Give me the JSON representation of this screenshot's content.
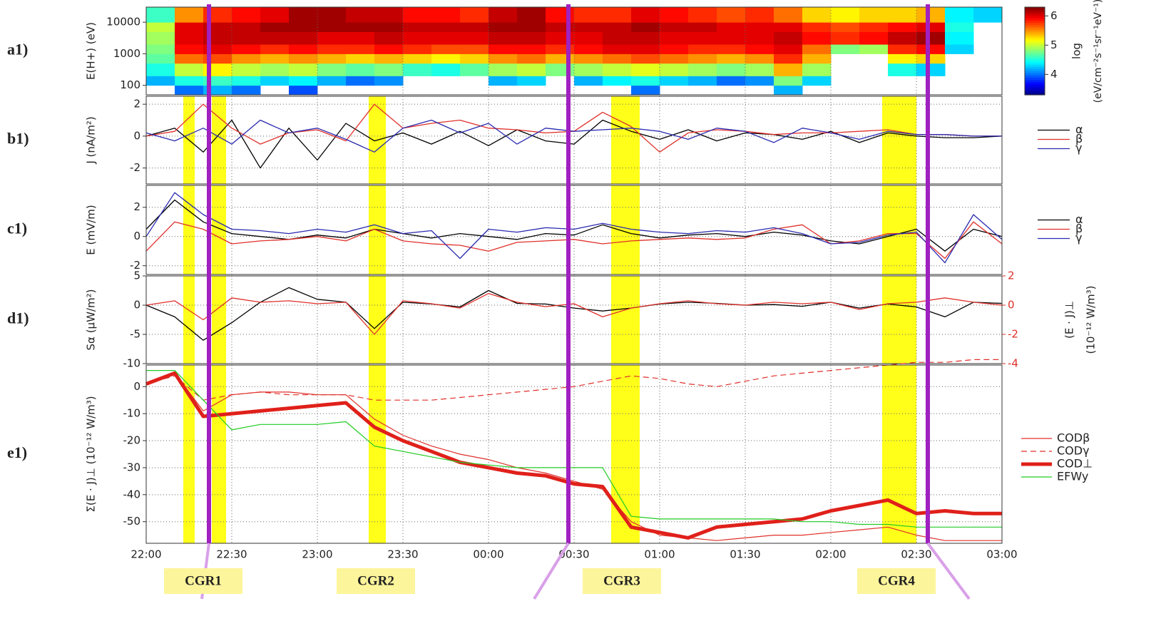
{
  "x_axis": {
    "xlim": [
      0,
      300
    ],
    "xticks": [
      {
        "value": 0,
        "label": "22:00"
      },
      {
        "value": 30,
        "label": "22:30"
      },
      {
        "value": 60,
        "label": "23:00"
      },
      {
        "value": 90,
        "label": "23:30"
      },
      {
        "value": 120,
        "label": "00:00"
      },
      {
        "value": 150,
        "label": "00:30"
      },
      {
        "value": 180,
        "label": "01:00"
      },
      {
        "value": 210,
        "label": "01:30"
      },
      {
        "value": 240,
        "label": "02:00"
      },
      {
        "value": 270,
        "label": "02:30"
      },
      {
        "value": 300,
        "label": "03:00"
      }
    ]
  },
  "highlights": [
    [
      13,
      17
    ],
    [
      23,
      28
    ],
    [
      78,
      84
    ],
    [
      163,
      173
    ],
    [
      258,
      270
    ]
  ],
  "markers": [
    22,
    148,
    274
  ],
  "regions": [
    "CGR1",
    "CGR2",
    "CGR3",
    "CGR4"
  ],
  "chart_data": [
    {
      "type": "heatmap",
      "panel": "a1)",
      "ylabel": "E(H+) (eV)",
      "log_y": true,
      "ylim": [
        50,
        30000
      ],
      "yticks": [
        100,
        1000,
        10000
      ],
      "x_edges": [
        0,
        10,
        20,
        30,
        40,
        50,
        60,
        70,
        80,
        90,
        100,
        110,
        120,
        130,
        140,
        150,
        160,
        170,
        180,
        190,
        200,
        210,
        220,
        230,
        240,
        250,
        260,
        270,
        280,
        290,
        300
      ],
      "y_edges": [
        50,
        100,
        200,
        500,
        1000,
        2000,
        5000,
        10000,
        30000
      ],
      "z": [
        [
          null,
          4.0,
          4.2,
          4.0,
          null,
          3.9,
          null,
          null,
          null,
          null,
          null,
          null,
          null,
          null,
          null,
          null,
          null,
          4.0,
          null,
          null,
          null,
          null,
          4.2,
          null,
          null,
          null,
          null,
          null,
          null,
          null
        ],
        [
          4.2,
          4.5,
          4.6,
          4.5,
          4.3,
          4.4,
          4.2,
          4.0,
          4.1,
          null,
          null,
          null,
          4.2,
          4.3,
          null,
          4.2,
          4.4,
          4.5,
          4.3,
          4.2,
          4.0,
          4.1,
          4.8,
          4.3,
          null,
          null,
          null,
          null,
          null,
          null
        ],
        [
          4.5,
          5.0,
          5.2,
          5.0,
          4.9,
          5.0,
          4.8,
          4.7,
          4.8,
          4.6,
          4.5,
          4.7,
          4.9,
          5.0,
          4.8,
          4.9,
          5.0,
          5.1,
          5.0,
          4.9,
          4.8,
          4.9,
          5.4,
          4.9,
          null,
          null,
          4.5,
          4.3,
          null,
          null
        ],
        [
          4.7,
          5.6,
          5.7,
          5.5,
          5.4,
          5.5,
          5.4,
          5.3,
          5.4,
          5.3,
          5.2,
          5.3,
          5.5,
          5.6,
          5.4,
          5.5,
          5.6,
          5.7,
          5.6,
          5.5,
          5.4,
          5.5,
          5.8,
          5.4,
          null,
          null,
          5.2,
          5.3,
          null,
          null
        ],
        [
          4.8,
          5.9,
          6.0,
          5.9,
          5.8,
          5.9,
          5.8,
          5.8,
          5.9,
          5.8,
          5.7,
          5.7,
          5.9,
          5.9,
          5.8,
          5.9,
          6.0,
          6.0,
          5.9,
          5.8,
          5.8,
          5.9,
          6.0,
          5.6,
          4.8,
          4.9,
          5.8,
          5.9,
          4.3,
          null
        ],
        [
          4.9,
          6.0,
          6.1,
          6.1,
          6.1,
          6.1,
          6.0,
          6.0,
          6.1,
          6.0,
          6.0,
          6.0,
          6.1,
          6.1,
          6.0,
          6.0,
          6.1,
          6.1,
          6.0,
          6.0,
          6.0,
          6.0,
          6.1,
          5.9,
          5.8,
          5.9,
          6.1,
          6.2,
          4.4,
          null
        ],
        [
          5.0,
          6.0,
          6.1,
          6.1,
          6.2,
          6.2,
          6.2,
          6.2,
          6.2,
          6.1,
          6.1,
          6.1,
          6.2,
          6.2,
          6.1,
          6.1,
          6.1,
          6.2,
          6.1,
          6.1,
          6.0,
          6.0,
          6.0,
          5.8,
          5.7,
          5.8,
          5.9,
          6.0,
          4.5,
          null
        ],
        [
          4.6,
          5.5,
          5.8,
          5.9,
          6.0,
          6.2,
          6.2,
          6.1,
          6.1,
          5.9,
          5.9,
          5.8,
          6.1,
          6.2,
          5.9,
          5.8,
          5.8,
          6.0,
          5.9,
          5.8,
          5.7,
          5.8,
          5.6,
          5.3,
          5.2,
          5.3,
          5.3,
          5.4,
          4.4,
          4.3
        ]
      ],
      "colorbar": {
        "lim": [
          3.3,
          6.3
        ],
        "ticks": [
          4,
          5,
          6
        ],
        "label": "log",
        "unit": "(eV/cm⁻²s⁻¹sr⁻¹eV⁻¹)"
      }
    },
    {
      "type": "line",
      "panel": "b1)",
      "ylabel": "J (nA/m²)",
      "ylim": [
        -3,
        2.5
      ],
      "yticks": [
        -2,
        0,
        2
      ],
      "x": [
        0,
        10,
        20,
        30,
        40,
        50,
        60,
        70,
        80,
        90,
        100,
        110,
        120,
        130,
        140,
        150,
        160,
        170,
        180,
        190,
        200,
        210,
        220,
        230,
        240,
        250,
        260,
        270,
        280,
        290,
        300
      ],
      "series": [
        {
          "name": "α",
          "color": "#000000",
          "values": [
            0,
            0.5,
            -1,
            1,
            -2,
            0.5,
            -1.5,
            0.8,
            -0.3,
            0.2,
            -0.5,
            0.3,
            -0.6,
            0.4,
            -0.3,
            -0.5,
            1.0,
            0.3,
            -0.2,
            0.4,
            -0.3,
            0.2,
            0.1,
            -0.2,
            0.3,
            -0.4,
            0.2,
            0.0,
            -0.1,
            -0.1,
            0
          ]
        },
        {
          "name": "β",
          "color": "#e0302a",
          "values": [
            0,
            0.3,
            2,
            0.5,
            -0.5,
            0.2,
            0.4,
            -0.3,
            2,
            0.5,
            0.8,
            1,
            0.5,
            0.4,
            0.2,
            0.3,
            1.5,
            0.6,
            -1,
            0.2,
            0.4,
            0.3,
            0.1,
            0.2,
            0.2,
            0.3,
            0.4,
            0.1,
            0.1,
            0,
            0
          ]
        },
        {
          "name": "γ",
          "color": "#2a2ab0",
          "values": [
            0.2,
            -0.3,
            0.5,
            -0.5,
            1,
            0.2,
            0.5,
            -0.2,
            -1,
            0.5,
            1,
            0.2,
            0.8,
            -0.5,
            0.5,
            0.3,
            0.4,
            0.5,
            0.3,
            -0.2,
            0.5,
            0.3,
            -0.4,
            0.5,
            0.2,
            -0.2,
            0.3,
            0.1,
            0.1,
            0,
            0
          ]
        }
      ]
    },
    {
      "type": "line",
      "panel": "c1)",
      "ylabel": "E (mV/m)",
      "ylim": [
        -2.6,
        3.5
      ],
      "yticks": [
        -2,
        0,
        2
      ],
      "x": [
        0,
        10,
        20,
        30,
        40,
        50,
        60,
        70,
        80,
        90,
        100,
        110,
        120,
        130,
        140,
        150,
        160,
        170,
        180,
        190,
        200,
        210,
        220,
        230,
        240,
        250,
        260,
        270,
        280,
        290,
        300
      ],
      "series": [
        {
          "name": "α",
          "color": "#000000",
          "values": [
            0.5,
            2.5,
            1,
            0.2,
            0,
            -0.2,
            0.1,
            -0.1,
            0.5,
            0.2,
            -0.1,
            0.2,
            0,
            -0.2,
            0.2,
            0.1,
            0.8,
            0.2,
            -0.1,
            0.1,
            0.2,
            0,
            0.3,
            0.1,
            -0.3,
            -0.5,
            0,
            0.5,
            -1,
            0.5,
            0
          ]
        },
        {
          "name": "β",
          "color": "#e0302a",
          "values": [
            -1,
            1,
            0.5,
            -0.5,
            -0.3,
            -0.2,
            0,
            -0.3,
            0.5,
            -0.3,
            -0.5,
            -0.6,
            -1,
            -0.4,
            -0.3,
            -0.2,
            -0.5,
            -0.3,
            -0.2,
            -0.1,
            -0.2,
            -0.1,
            0.5,
            0.8,
            -0.5,
            -0.3,
            0.2,
            0.2,
            -1.5,
            1,
            -0.5
          ]
        },
        {
          "name": "γ",
          "color": "#2a2ab0",
          "values": [
            0,
            3,
            1.5,
            0.5,
            0.4,
            0.2,
            0.5,
            0.3,
            0.8,
            0.2,
            0.4,
            -1.5,
            0.5,
            0.3,
            0.6,
            0.5,
            0.9,
            0.5,
            0.3,
            0.2,
            0.4,
            0.3,
            0.6,
            0.2,
            -0.5,
            -0.4,
            0.1,
            0.3,
            -1.8,
            1.5,
            -0.2
          ]
        }
      ]
    },
    {
      "type": "line",
      "panel": "d1)",
      "ylabel": "Sα (μW/m²)",
      "y2label": "(E · J)⊥",
      "y2unit": "(10⁻¹² W/m³)",
      "ylim": [
        -10,
        5
      ],
      "yticks": [
        -10,
        -5,
        0,
        5
      ],
      "y2lim": [
        -4,
        2
      ],
      "y2ticks": [
        -4,
        -2,
        0,
        2
      ],
      "x": [
        0,
        10,
        20,
        30,
        40,
        50,
        60,
        70,
        80,
        90,
        100,
        110,
        120,
        130,
        140,
        150,
        160,
        170,
        180,
        190,
        200,
        210,
        220,
        230,
        240,
        250,
        260,
        270,
        280,
        290,
        300
      ],
      "series": [
        {
          "color": "#000000",
          "values": [
            0,
            -2,
            -6,
            -3,
            0.5,
            3,
            1,
            0.5,
            -4,
            0.5,
            0.2,
            -0.3,
            2.5,
            0.3,
            0.2,
            -0.5,
            -1,
            -0.5,
            0.2,
            0.5,
            0.3,
            0,
            0.1,
            -0.2,
            0.5,
            -0.5,
            0.2,
            -0.3,
            -2,
            0.5,
            0.3
          ]
        },
        {
          "color": "#e0302a",
          "axis": "y2",
          "values": [
            0,
            0.3,
            -1,
            0.5,
            0.2,
            0.3,
            0.1,
            0.2,
            -2,
            0.3,
            0.1,
            -0.2,
            0.8,
            0.2,
            -0.1,
            0.1,
            -0.8,
            -0.2,
            0.1,
            0.3,
            0.1,
            0,
            0.2,
            0.1,
            0.2,
            -0.3,
            0.1,
            0.2,
            0.5,
            0.2,
            0
          ]
        }
      ]
    },
    {
      "type": "line",
      "panel": "e1)",
      "ylabel": "Σ(E · J)⊥ (10⁻¹² W/m³)",
      "ylim": [
        -58,
        8
      ],
      "yticks": [
        -50,
        -40,
        -30,
        -20,
        -10,
        0
      ],
      "x": [
        0,
        10,
        20,
        30,
        40,
        50,
        60,
        70,
        80,
        90,
        100,
        110,
        120,
        130,
        140,
        150,
        160,
        170,
        180,
        190,
        200,
        210,
        220,
        230,
        240,
        250,
        260,
        270,
        280,
        290,
        300
      ],
      "series": [
        {
          "name": "CODβ",
          "color": "#e0302a",
          "width": 1.2,
          "values": [
            1,
            5,
            -9,
            -3,
            -2,
            -2,
            -3,
            -3,
            -12,
            -18,
            -22,
            -25,
            -27,
            -30,
            -32,
            -35,
            -38,
            -50,
            -55,
            -56,
            -57,
            -56,
            -55,
            -55,
            -54,
            -53,
            -52,
            -55,
            -57,
            -57,
            -57
          ]
        },
        {
          "name": "CODγ",
          "color": "#e0302a",
          "width": 1.2,
          "dash": true,
          "values": [
            1,
            4,
            -5,
            -3,
            -2,
            -3,
            -3,
            -3,
            -5,
            -5,
            -5,
            -4,
            -3,
            -2,
            -1,
            0,
            2,
            4,
            3,
            1,
            0,
            2,
            4,
            5,
            6,
            7,
            8,
            9,
            9,
            10,
            10
          ]
        },
        {
          "name": "COD⊥",
          "color": "#e0201a",
          "width": 5,
          "values": [
            1,
            5,
            -11,
            -10,
            -9,
            -8,
            -7,
            -6,
            -15,
            -20,
            -24,
            -28,
            -30,
            -32,
            -33,
            -36,
            -37,
            -52,
            -54,
            -56,
            -52,
            -51,
            -50,
            -49,
            -46,
            -44,
            -42,
            -47,
            -46,
            -47,
            -47
          ]
        },
        {
          "name": "EFWy",
          "color": "#22cc22",
          "width": 1.2,
          "values": [
            6,
            6,
            -5,
            -16,
            -14,
            -14,
            -14,
            -13,
            -22,
            -24,
            -26,
            -28,
            -29,
            -30,
            -30,
            -30,
            -30,
            -48,
            -49,
            -49,
            -49,
            -49,
            -49,
            -50,
            -50,
            -51,
            -51,
            -52,
            -52,
            -52,
            -52
          ]
        }
      ]
    }
  ]
}
